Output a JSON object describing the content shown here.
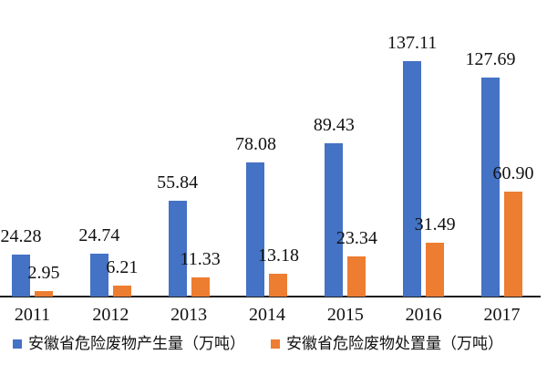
{
  "chart_data": {
    "type": "bar",
    "categories": [
      "2011",
      "2012",
      "2013",
      "2014",
      "2015",
      "2016",
      "2017"
    ],
    "series": [
      {
        "name": "安徽省危险废物产生量（万吨）",
        "color": "#4472C4",
        "values": [
          24.28,
          24.74,
          55.84,
          78.08,
          89.43,
          137.11,
          127.69
        ],
        "labels": [
          "24.28",
          "24.74",
          "55.84",
          "78.08",
          "89.43",
          "137.11",
          "127.69"
        ]
      },
      {
        "name": "安徽省危险废物处置量（万吨）",
        "color": "#ED7D31",
        "values": [
          2.95,
          6.21,
          11.33,
          13.18,
          23.34,
          31.49,
          60.9
        ],
        "labels": [
          "2.95",
          "6.21",
          "11.33",
          "13.18",
          "23.34",
          "31.49",
          "60.90"
        ]
      }
    ],
    "value_labels_shown": true,
    "ylim": [
      0,
      140
    ],
    "grid": false,
    "legend_position": "bottom",
    "axis_color": "#1c1c1c",
    "background_color": "#ffffff"
  }
}
